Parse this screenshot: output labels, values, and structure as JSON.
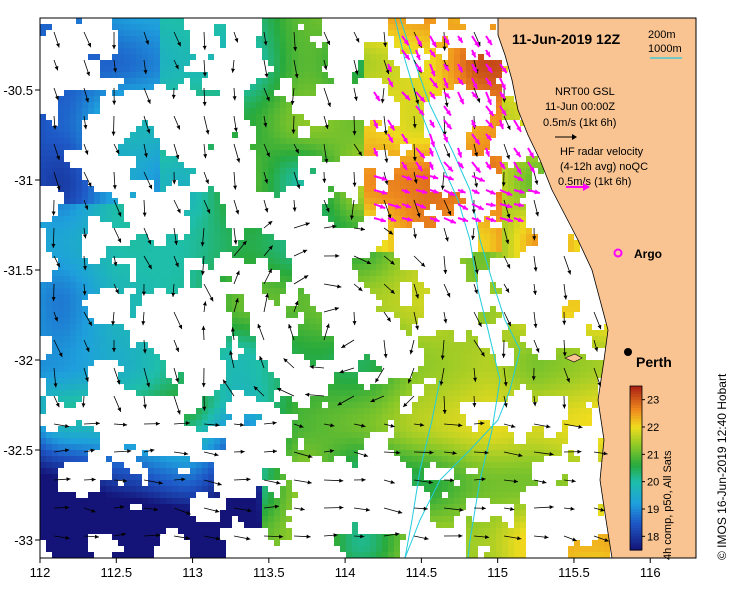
{
  "title": "11-Jun-2019 12Z",
  "scale_legend": {
    "depth_label": "200m",
    "depth_label_2": "1000m"
  },
  "gsl_legend": {
    "line1": "NRT00 GSL",
    "line2": "11-Jun 00:00Z",
    "line3": "0.5m/s (1kt 6h)"
  },
  "hf_legend": {
    "line1": "HF radar velocity",
    "line2": "(4-12h avg) noQC",
    "line3": "0.5m/s (1kt 6h)"
  },
  "places": {
    "argo": "Argo",
    "perth": "Perth"
  },
  "colorbar": {
    "label": "4h comp, p50, All Sats",
    "ticks": [
      "23",
      "22",
      "21",
      "20",
      "19",
      "18"
    ],
    "range": [
      17.5,
      23.5
    ]
  },
  "credit": "© IMOS 16-Jun-2019 12:40 Hobart",
  "axes": {
    "x_ticks": [
      "112",
      "112.5",
      "113",
      "113.5",
      "114",
      "114.5",
      "115",
      "115.5",
      "116"
    ],
    "y_ticks": [
      "-30.5",
      "-31",
      "-31.5",
      "-32",
      "-32.5",
      "-33"
    ],
    "lon_range": [
      112,
      116.3
    ],
    "lat_range": [
      -33.1,
      -30.1
    ]
  },
  "colors": {
    "land": "#f9c492",
    "hf_arrow": "#ff00ff",
    "bathy": "#22ccdd",
    "gsl_arrow": "#000000"
  }
}
